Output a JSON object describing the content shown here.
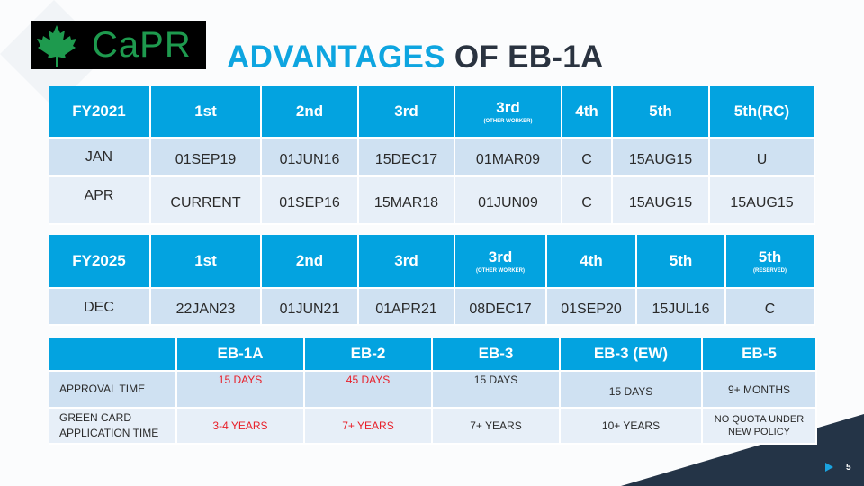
{
  "logo": {
    "text": "CaPR",
    "icon": "maple-leaf-icon",
    "color": "#1e9a4e"
  },
  "title": {
    "accent": "ADVANTAGES",
    "rest": " OF EB-1A",
    "accent_color": "#0ea5e0"
  },
  "table_fy2021": {
    "headers": [
      "FY2021",
      "1st",
      "2nd",
      "3rd",
      "3rd",
      "4th",
      "5th",
      "5th(RC)"
    ],
    "header_sub": {
      "4": "(OTHER WORKER)"
    },
    "rows": [
      [
        "JAN",
        "01SEP19",
        "01JUN16",
        "15DEC17",
        "01MAR09",
        "C",
        "15AUG15",
        "U"
      ],
      [
        "APR",
        "CURRENT",
        "01SEP16",
        "15MAR18",
        "01JUN09",
        "C",
        "15AUG15",
        "15AUG15"
      ]
    ]
  },
  "table_fy2025": {
    "headers": [
      "FY2025",
      "1st",
      "2nd",
      "3rd",
      "3rd",
      "4th",
      "5th",
      "5th"
    ],
    "header_sub": {
      "4": "(OTHER WORKER)",
      "7": "(RESERVED)"
    },
    "rows": [
      [
        "DEC",
        "22JAN23",
        "01JUN21",
        "01APR21",
        "08DEC17",
        "01SEP20",
        "15JUL16",
        "C"
      ]
    ]
  },
  "table_compare": {
    "headers": [
      "",
      "EB-1A",
      "EB-2",
      "EB-3",
      "EB-3 (EW)",
      "EB-5"
    ],
    "rows": [
      [
        "APPROVAL TIME",
        "15 DAYS",
        "45 DAYS",
        "15 DAYS",
        "15 DAYS",
        "9+ MONTHS"
      ],
      [
        "GREEN CARD APPLICATION TIME",
        "3-4 YEARS",
        "7+ YEARS",
        "7+ YEARS",
        "10+ YEARS",
        "NO QUOTA UNDER NEW POLICY"
      ]
    ],
    "highlight_color": "#e8202a"
  },
  "footer": {
    "page": "5",
    "icon": "play-icon"
  },
  "colors": {
    "header": "#03a3e0",
    "row_dark": "#cfe1f2",
    "row_light": "#e7eff8",
    "corner": "#243447"
  }
}
